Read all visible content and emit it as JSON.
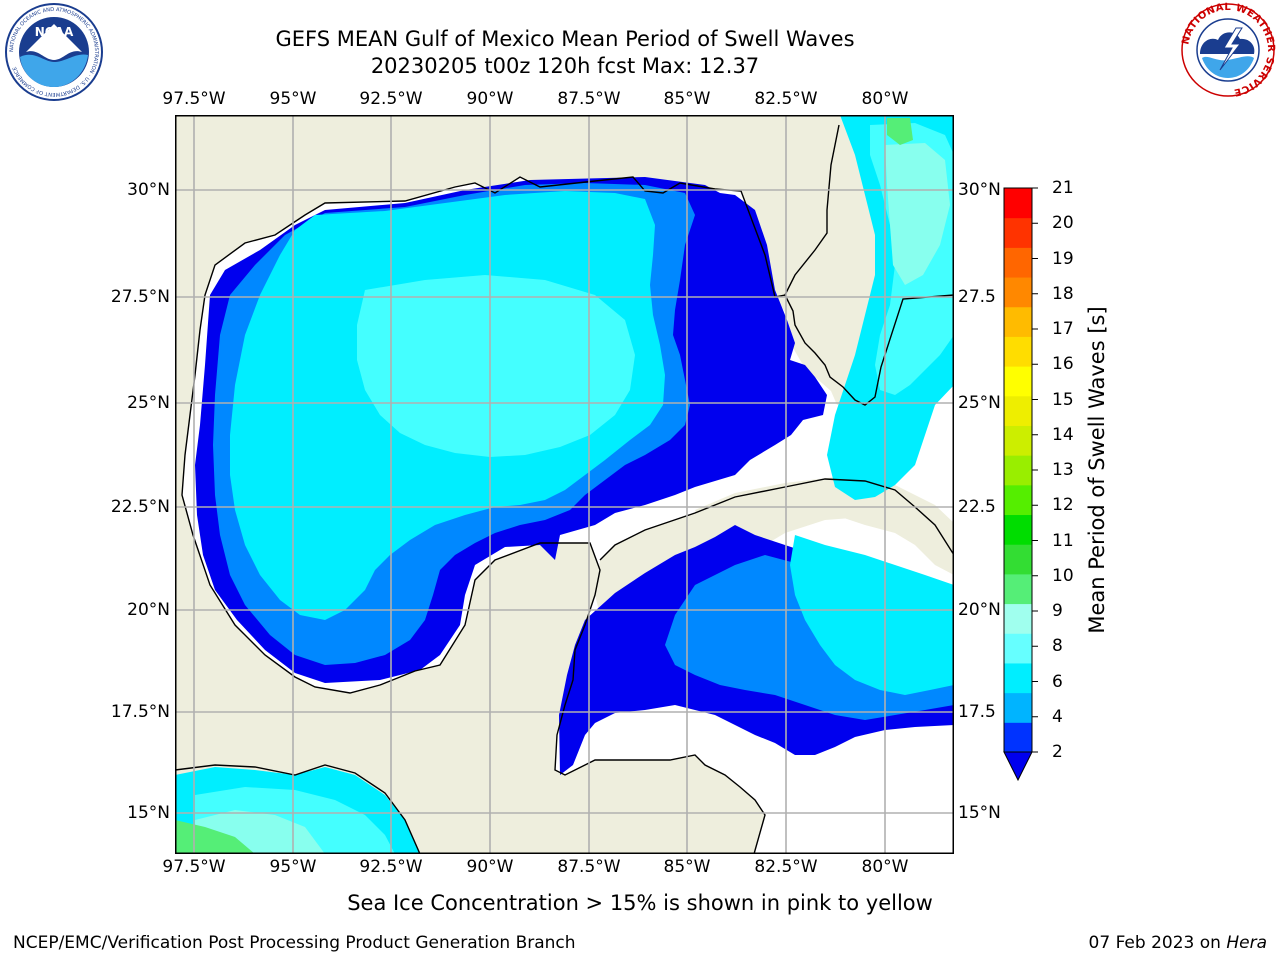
{
  "title": {
    "line1": "GEFS MEAN Gulf of Mexico Mean Period of Swell Waves",
    "line2": "20230205 t00z 120h fcst   Max: 12.37"
  },
  "axes": {
    "lon_labels": [
      "97.5°W",
      "95°W",
      "92.5°W",
      "90°W",
      "87.5°W",
      "85°W",
      "82.5°W",
      "80°W"
    ],
    "lat_labels_left": [
      "30°N",
      "27.5°N",
      "25°N",
      "22.5°N",
      "20°N",
      "17.5°N",
      "15°N"
    ],
    "lat_labels_right": [
      "30°N",
      "27.5",
      "25°N",
      "22.5",
      "20°N",
      "17.5",
      "15°N"
    ],
    "lon_range": [
      -98.0,
      -79.0
    ],
    "lat_range": [
      14.0,
      31.8
    ],
    "grid": true
  },
  "colorbar": {
    "label": "Mean Period of Swell Waves [s]",
    "ticks": [
      "2",
      "4",
      "6",
      "8",
      "9",
      "10",
      "11",
      "12",
      "13",
      "14",
      "15",
      "16",
      "17",
      "18",
      "19",
      "20",
      "21"
    ],
    "colors": [
      "#0033ff",
      "#00b4ff",
      "#00eeff",
      "#66ffff",
      "#a0ffee",
      "#55ee77",
      "#33dd33",
      "#00dd00",
      "#55ee00",
      "#99ee00",
      "#ccee00",
      "#eeee00",
      "#ffff00",
      "#ffdd00",
      "#ffbb00",
      "#ff8800",
      "#ff6600",
      "#ff3300",
      "#ff0000"
    ],
    "extend_color": "#0000ee"
  },
  "colors": {
    "land": "#eeeedd",
    "ocean_nodata": "#ffffff",
    "band_2_4": "#0000ee",
    "band_4_6": "#0088ff",
    "band_6_8": "#00eeff",
    "band_8_9": "#44ffff",
    "band_9_10": "#88ffee",
    "band_10_11": "#55ee77",
    "grid": "#b0b0b0"
  },
  "footnote": "Sea Ice Concentration > 15% is shown in pink to yellow",
  "credit": "NCEP/EMC/Verification Post Processing Product Generation Branch",
  "date_stamp": {
    "date": "07 Feb 2023 on ",
    "host": "Hera"
  },
  "logos": {
    "noaa": {
      "text": "NOAA",
      "ring_text": "NATIONAL OCEANIC AND ATMOSPHERIC ADMINISTRATION · U.S. DEPARTMENT OF COMMERCE"
    },
    "nws": {
      "ring_text": "NATIONAL WEATHER SERVICE"
    }
  }
}
